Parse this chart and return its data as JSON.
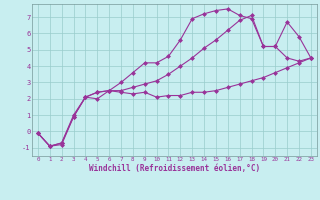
{
  "xlabel": "Windchill (Refroidissement éolien,°C)",
  "bg_color": "#c8eef0",
  "line_color": "#993399",
  "grid_color": "#99cccc",
  "xlim": [
    -0.5,
    23.5
  ],
  "ylim": [
    -1.5,
    7.8
  ],
  "yticks": [
    -1,
    0,
    1,
    2,
    3,
    4,
    5,
    6,
    7
  ],
  "xticks": [
    0,
    1,
    2,
    3,
    4,
    5,
    6,
    7,
    8,
    9,
    10,
    11,
    12,
    13,
    14,
    15,
    16,
    17,
    18,
    19,
    20,
    21,
    22,
    23
  ],
  "line1_x": [
    0,
    1,
    2,
    3,
    4,
    5,
    6,
    7,
    8,
    9,
    10,
    11,
    12,
    13,
    14,
    15,
    16,
    17,
    18,
    19,
    20,
    21,
    22,
    23
  ],
  "line1_y": [
    -0.1,
    -0.9,
    -0.8,
    0.9,
    2.1,
    2.0,
    2.5,
    2.4,
    2.3,
    2.4,
    2.1,
    2.2,
    2.2,
    2.4,
    2.4,
    2.5,
    2.7,
    2.9,
    3.1,
    3.3,
    3.6,
    3.9,
    4.2,
    4.5
  ],
  "line2_x": [
    0,
    1,
    2,
    3,
    4,
    5,
    6,
    7,
    8,
    9,
    10,
    11,
    12,
    13,
    14,
    15,
    16,
    17,
    18,
    19,
    20,
    21,
    22,
    23
  ],
  "line2_y": [
    -0.1,
    -0.9,
    -0.7,
    0.9,
    2.1,
    2.4,
    2.5,
    3.0,
    3.6,
    4.2,
    4.2,
    4.6,
    5.6,
    6.9,
    7.2,
    7.4,
    7.5,
    7.1,
    6.9,
    5.2,
    5.2,
    6.7,
    5.8,
    4.5
  ],
  "line3_x": [
    0,
    1,
    2,
    3,
    4,
    5,
    6,
    7,
    8,
    9,
    10,
    11,
    12,
    13,
    14,
    15,
    16,
    17,
    18,
    19,
    20,
    21,
    22,
    23
  ],
  "line3_y": [
    -0.1,
    -0.9,
    -0.7,
    1.0,
    2.1,
    2.4,
    2.5,
    2.5,
    2.7,
    2.9,
    3.1,
    3.5,
    4.0,
    4.5,
    5.1,
    5.6,
    6.2,
    6.8,
    7.1,
    5.2,
    5.2,
    4.5,
    4.3,
    4.5
  ]
}
